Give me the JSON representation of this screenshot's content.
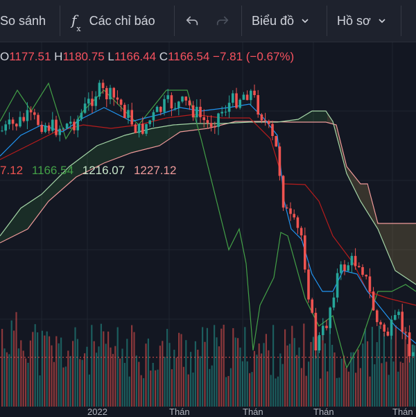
{
  "toolbar": {
    "compare_label": "So sánh",
    "indicators_label": "Các chỉ báo",
    "chart_label": "Biểu đồ",
    "profile_label": "Hồ sơ"
  },
  "ohlc": {
    "o_key": "O",
    "o_val": "1177.51",
    "h_key": "H",
    "h_val": "1180.75",
    "l_key": "L",
    "l_val": "1166.44",
    "c_key": "C",
    "c_val": "1166.54",
    "change": "−7.81 (−0.67%)"
  },
  "indicator_values": {
    "v1": "7.12",
    "v2": "1166.54",
    "v3": "1216.07",
    "v4": "1227.12"
  },
  "axis_labels": {
    "year": "2022",
    "m1": "Thán",
    "m2": "Thán",
    "m3": "Thán",
    "m4": "Thán"
  },
  "colors": {
    "up": "#26a69a",
    "down": "#ef5350",
    "lagging": "#43a047",
    "tenkan": "#2196f3",
    "kijun": "#b71c1c",
    "span_a": "#a5d6a7",
    "span_b": "#ef9a9a"
  }
}
